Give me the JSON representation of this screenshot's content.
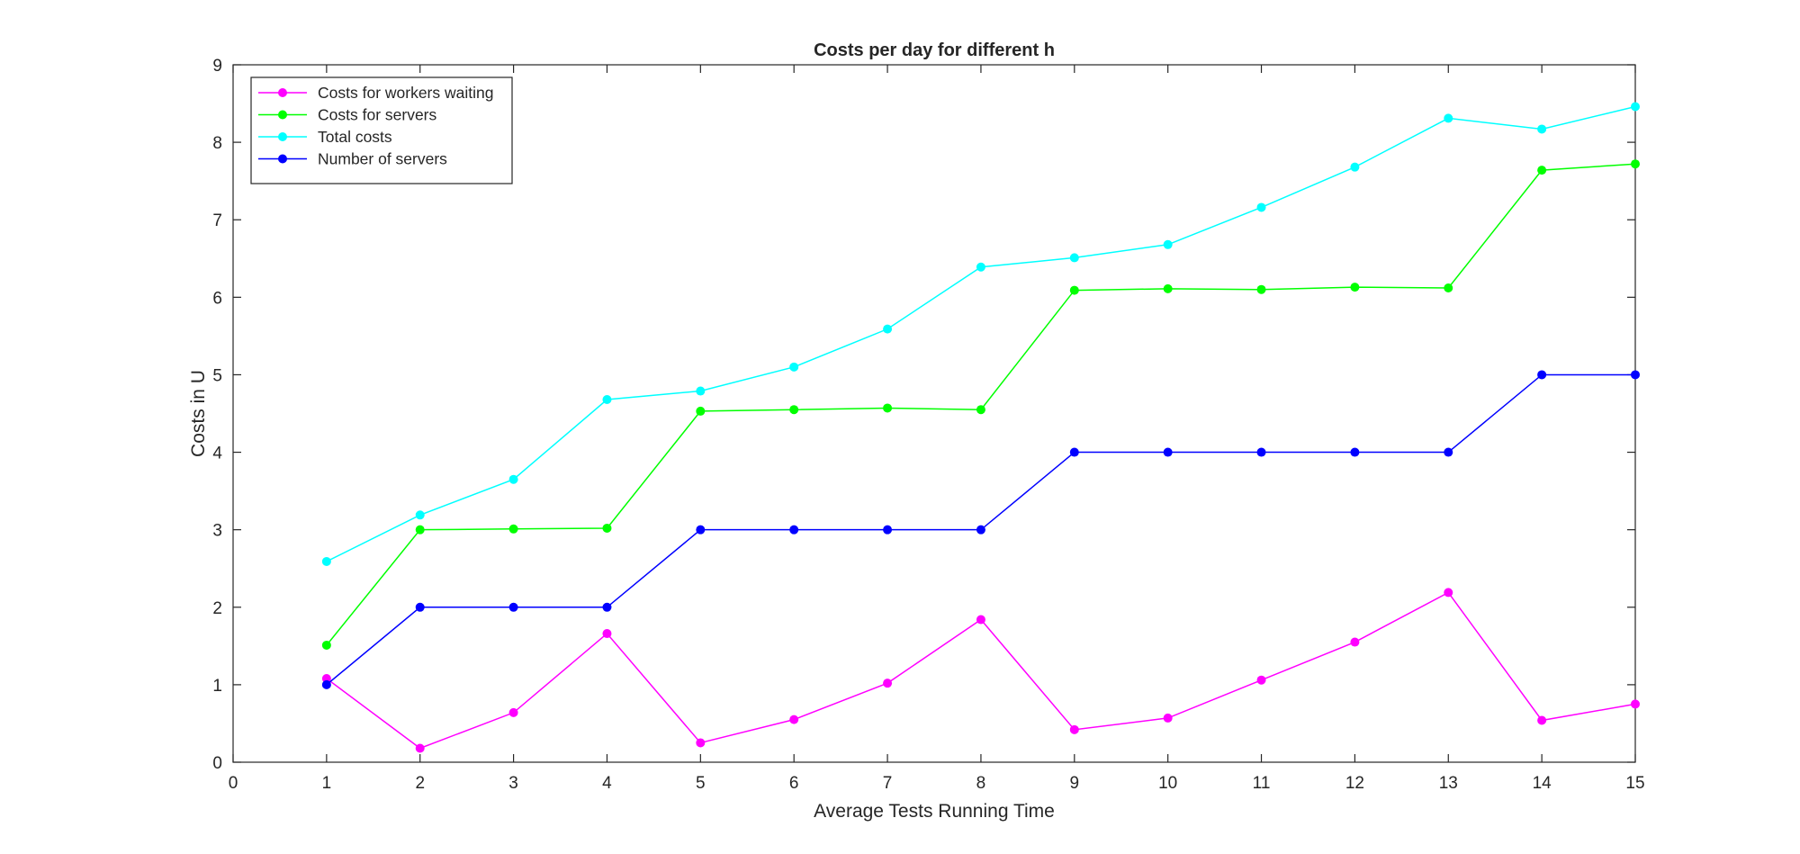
{
  "chart_data": {
    "type": "line",
    "title": "Costs per day for different h",
    "xlabel": "Average Tests Running Time",
    "ylabel": "Costs in U",
    "xlim": [
      0,
      15
    ],
    "ylim": [
      0,
      9
    ],
    "xticks": [
      "0",
      "1",
      "2",
      "3",
      "4",
      "5",
      "6",
      "7",
      "8",
      "9",
      "10",
      "11",
      "12",
      "13",
      "14",
      "15"
    ],
    "yticks": [
      "0",
      "1",
      "2",
      "3",
      "4",
      "5",
      "6",
      "7",
      "8",
      "9"
    ],
    "grid": false,
    "legend_position": "top-left",
    "x": [
      1,
      2,
      3,
      4,
      5,
      6,
      7,
      8,
      9,
      10,
      11,
      12,
      13,
      14,
      15
    ],
    "series": [
      {
        "name": "Costs for workers waiting",
        "color": "#ff00ff",
        "values": [
          1.08,
          0.18,
          0.64,
          1.66,
          0.25,
          0.55,
          1.02,
          1.84,
          0.42,
          0.57,
          1.06,
          1.55,
          2.19,
          0.54,
          0.75
        ]
      },
      {
        "name": "Costs for servers",
        "color": "#00ff00",
        "values": [
          1.51,
          3.0,
          3.01,
          3.02,
          4.53,
          4.55,
          4.57,
          4.55,
          6.09,
          6.11,
          6.1,
          6.13,
          6.12,
          7.64,
          7.72
        ]
      },
      {
        "name": "Total costs",
        "color": "#00ffff",
        "values": [
          2.59,
          3.19,
          3.65,
          4.68,
          4.79,
          5.1,
          5.59,
          6.39,
          6.51,
          6.68,
          7.16,
          7.68,
          8.31,
          8.17,
          8.46
        ]
      },
      {
        "name": "Number of servers",
        "color": "#0000ff",
        "values": [
          1,
          2,
          2,
          2,
          3,
          3,
          3,
          3,
          4,
          4,
          4,
          4,
          4,
          5,
          5
        ]
      }
    ]
  }
}
